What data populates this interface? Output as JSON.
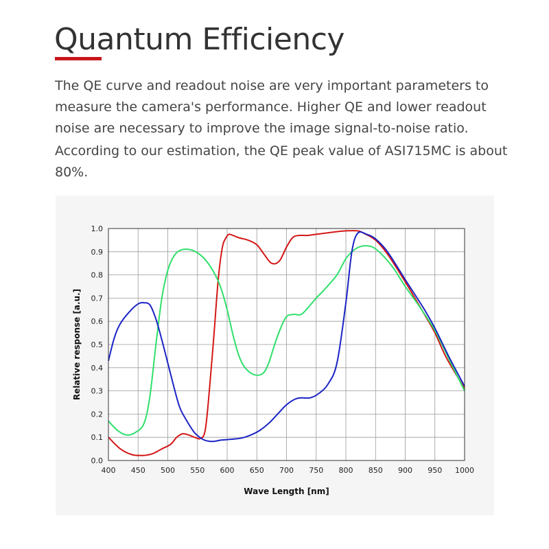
{
  "page": {
    "title": "Quantum Efficiency",
    "paragraphs": [
      "The QE curve and readout noise are very important parameters to measure the camera's performance. Higher QE and lower readout noise are necessary to improve the image signal-to-noise ratio.",
      "According to our estimation, the QE peak value of ASI715MC is about 80%."
    ]
  },
  "colors": {
    "accent": "#c8151b",
    "red": "#d41616",
    "green": "#2ee06a",
    "blue": "#1a23c4"
  },
  "chart_data": {
    "type": "line",
    "xlabel": "Wave Length [nm]",
    "ylabel": "Relative response  [a.u.]",
    "xlim": [
      400,
      1000
    ],
    "ylim": [
      0,
      1
    ],
    "xticks": [
      400,
      450,
      500,
      550,
      600,
      650,
      700,
      750,
      800,
      850,
      900,
      950,
      1000
    ],
    "yticks": [
      "0.0",
      "0.1",
      "0.2",
      "0.3",
      "0.4",
      "0.5",
      "0.6",
      "0.7",
      "0.8",
      "0.9",
      "1.0"
    ],
    "grid": true,
    "series": [
      {
        "color": "red",
        "x": [
          400,
          420,
          440,
          460,
          475,
          490,
          505,
          515,
          525,
          535,
          545,
          555,
          563,
          570,
          578,
          585,
          592,
          598,
          603,
          610,
          620,
          635,
          650,
          662,
          675,
          688,
          700,
          710,
          720,
          735,
          750,
          765,
          780,
          800,
          820,
          830,
          850,
          870,
          900,
          930,
          950,
          970,
          1000
        ],
        "y": [
          0.1,
          0.05,
          0.025,
          0.022,
          0.03,
          0.05,
          0.07,
          0.1,
          0.115,
          0.11,
          0.1,
          0.095,
          0.13,
          0.3,
          0.55,
          0.78,
          0.92,
          0.96,
          0.975,
          0.97,
          0.96,
          0.95,
          0.93,
          0.89,
          0.85,
          0.86,
          0.92,
          0.96,
          0.97,
          0.97,
          0.975,
          0.98,
          0.985,
          0.99,
          0.99,
          0.98,
          0.95,
          0.89,
          0.77,
          0.64,
          0.55,
          0.44,
          0.31
        ]
      },
      {
        "color": "green",
        "x": [
          400,
          415,
          430,
          445,
          460,
          470,
          480,
          490,
          500,
          510,
          520,
          535,
          550,
          565,
          580,
          590,
          600,
          610,
          620,
          630,
          645,
          660,
          670,
          680,
          690,
          700,
          712,
          725,
          740,
          750,
          765,
          785,
          800,
          815,
          830,
          845,
          860,
          880,
          900,
          925,
          950,
          975,
          1000
        ],
        "y": [
          0.17,
          0.13,
          0.11,
          0.12,
          0.16,
          0.28,
          0.5,
          0.7,
          0.82,
          0.88,
          0.905,
          0.91,
          0.895,
          0.86,
          0.8,
          0.74,
          0.65,
          0.54,
          0.45,
          0.4,
          0.37,
          0.375,
          0.42,
          0.5,
          0.57,
          0.62,
          0.63,
          0.63,
          0.67,
          0.7,
          0.74,
          0.8,
          0.87,
          0.91,
          0.925,
          0.92,
          0.89,
          0.83,
          0.75,
          0.66,
          0.56,
          0.43,
          0.3
        ]
      },
      {
        "color": "blue",
        "x": [
          400,
          410,
          420,
          435,
          450,
          460,
          470,
          480,
          490,
          500,
          510,
          520,
          530,
          545,
          560,
          575,
          590,
          610,
          625,
          640,
          655,
          670,
          685,
          700,
          715,
          725,
          740,
          755,
          770,
          785,
          800,
          810,
          820,
          835,
          850,
          870,
          900,
          930,
          950,
          975,
          1000
        ],
        "y": [
          0.43,
          0.53,
          0.59,
          0.64,
          0.675,
          0.68,
          0.67,
          0.61,
          0.52,
          0.42,
          0.32,
          0.23,
          0.18,
          0.12,
          0.09,
          0.082,
          0.088,
          0.092,
          0.097,
          0.11,
          0.13,
          0.16,
          0.2,
          0.24,
          0.265,
          0.27,
          0.27,
          0.29,
          0.33,
          0.42,
          0.68,
          0.9,
          0.98,
          0.975,
          0.955,
          0.9,
          0.78,
          0.66,
          0.57,
          0.44,
          0.32
        ]
      }
    ]
  }
}
